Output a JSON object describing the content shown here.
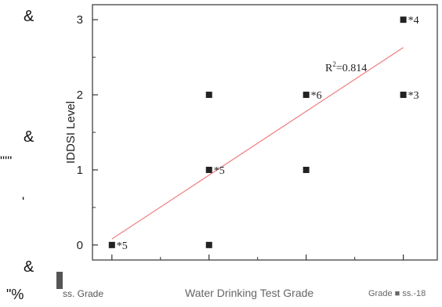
{
  "side_glyphs": [
    "&",
    "&",
    "\"'\"",
    "'",
    "&",
    "\"%"
  ],
  "chart_data": {
    "type": "scatter",
    "title": "",
    "xlabel": "Water Drinking Test Grade",
    "ylabel": "IDDSI Level",
    "xlim": [
      0.8,
      4.35
    ],
    "ylim": [
      -0.2,
      3.2
    ],
    "xticks": [
      1,
      2,
      3,
      4
    ],
    "yticks": [
      0,
      1,
      2,
      3
    ],
    "grid": false,
    "points": [
      {
        "x": 1,
        "y": 0,
        "label": "*5"
      },
      {
        "x": 2,
        "y": 0,
        "label": ""
      },
      {
        "x": 2,
        "y": 1,
        "label": "*5"
      },
      {
        "x": 2,
        "y": 2,
        "label": ""
      },
      {
        "x": 3,
        "y": 1,
        "label": ""
      },
      {
        "x": 3,
        "y": 2,
        "label": "*6"
      },
      {
        "x": 4,
        "y": 2,
        "label": "*3"
      },
      {
        "x": 4,
        "y": 3,
        "label": "*4"
      }
    ],
    "trendline": {
      "x": [
        1,
        4
      ],
      "y": [
        0.08,
        2.63
      ],
      "color": "#f08080"
    },
    "annotation": "=0.814"
  },
  "caption": {
    "left": "ss. Grade",
    "middle": "Water Drinking Test Grade",
    "right": "Grade ■ ss.-18"
  }
}
